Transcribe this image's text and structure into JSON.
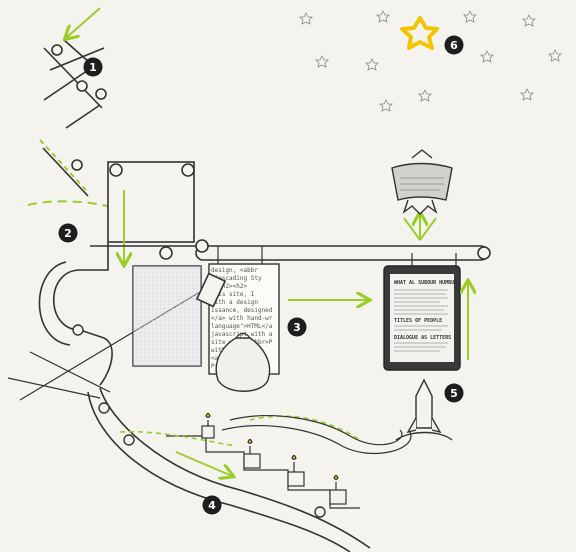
{
  "steps": [
    {
      "number": "1",
      "name": "step-1"
    },
    {
      "number": "2",
      "name": "step-2"
    },
    {
      "number": "3",
      "name": "step-3"
    },
    {
      "number": "4",
      "name": "step-4"
    },
    {
      "number": "5",
      "name": "step-5"
    },
    {
      "number": "6",
      "name": "step-6"
    }
  ],
  "page_text": {
    "lines": [
      "design, <abbr",
      "\"Cascading Sty",
      "s</h2><h2>",
      "this site, I",
      "with a design",
      "issance, designed",
      "</a> with hand-written",
      "language\">HTML</abbr",
      "javascript with an o",
      "site uses <abbr>PH",
      "with a Monog",
      "<a href=\"",
      "Prog"
    ]
  },
  "device_screen": {
    "heading": "WHAT AL SUBOUR NUMBUR",
    "section_a": "TITLES OF PEOPLE",
    "section_b": "DIALOGUE AS LETTERS"
  },
  "colors": {
    "accent": "#9ccc2b",
    "star": "#f5c400",
    "ink": "#2b2b2b",
    "paper": "#f4f3ee"
  }
}
